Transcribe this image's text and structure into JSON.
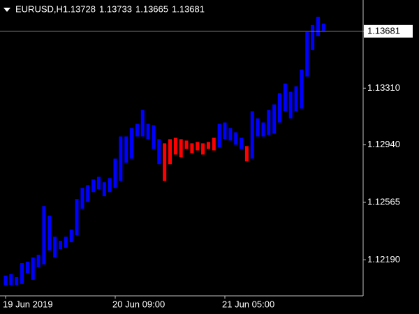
{
  "chart_data": {
    "type": "range-bar",
    "symbol": "EURUSD,H1",
    "ohlc": [
      1.13728,
      1.13733,
      1.13665,
      1.13681
    ],
    "last_price": 1.13681,
    "categories": [
      "19 Jun 2019",
      null,
      null,
      null,
      null,
      null,
      null,
      null,
      null,
      null,
      null,
      null,
      null,
      null,
      null,
      null,
      null,
      null,
      null,
      null,
      "20 Jun 09:00",
      null,
      null,
      null,
      null,
      null,
      null,
      null,
      null,
      null,
      null,
      null,
      null,
      null,
      null,
      null,
      null,
      null,
      null,
      null,
      "21 Jun 05:00",
      null,
      null,
      null,
      null,
      null,
      null,
      null,
      null,
      null,
      null,
      null,
      null,
      null,
      null,
      null,
      null,
      null,
      null
    ],
    "high": [
      1.12087,
      1.12096,
      1.12078,
      1.12169,
      1.12178,
      1.12205,
      1.12223,
      1.12541,
      1.12478,
      1.12341,
      1.12314,
      1.12341,
      1.12387,
      1.12587,
      1.12659,
      1.12677,
      1.12714,
      1.12732,
      1.12696,
      1.12723,
      1.1285,
      1.12995,
      1.12995,
      1.1305,
      1.13077,
      1.13168,
      1.13077,
      1.13068,
      1.12977,
      1.1295,
      1.12977,
      1.12986,
      1.12977,
      1.12968,
      1.1295,
      1.12959,
      1.1295,
      1.12959,
      1.12986,
      1.13077,
      1.13086,
      1.1305,
      1.13022,
      1.12986,
      1.12932,
      1.13159,
      1.13113,
      1.13086,
      1.13168,
      1.13204,
      1.13277,
      1.1334,
      1.13286,
      1.13322,
      1.13431,
      1.13676,
      1.13722,
      1.13776,
      1.13731
    ],
    "low": [
      1.12024,
      1.12024,
      1.12024,
      1.12033,
      1.12105,
      1.1206,
      1.12142,
      1.1216,
      1.12251,
      1.12205,
      1.1226,
      1.12269,
      1.12305,
      1.1235,
      1.12523,
      1.12568,
      1.12632,
      1.1265,
      1.12605,
      1.12632,
      1.12659,
      1.12705,
      1.12823,
      1.1285,
      1.12995,
      1.12995,
      1.12977,
      1.12913,
      1.12814,
      1.12705,
      1.12814,
      1.12877,
      1.12859,
      1.12913,
      1.12886,
      1.12904,
      1.12877,
      1.12913,
      1.12904,
      1.12923,
      1.12977,
      1.12968,
      1.12941,
      1.12913,
      1.12832,
      1.1285,
      1.12995,
      1.12995,
      1.13004,
      1.13013,
      1.13086,
      1.13159,
      1.13113,
      1.13159,
      1.13177,
      1.13386,
      1.13558,
      1.13649,
      1.13685
    ],
    "colors": [
      "#0000ff",
      "#0000ff",
      "#0000ff",
      "#0000ff",
      "#0000ff",
      "#0000ff",
      "#0000ff",
      "#0000ff",
      "#0000ff",
      "#0000ff",
      "#0000ff",
      "#0000ff",
      "#0000ff",
      "#0000ff",
      "#0000ff",
      "#0000ff",
      "#0000ff",
      "#0000ff",
      "#0000ff",
      "#0000ff",
      "#0000ff",
      "#0000ff",
      "#0000ff",
      "#0000ff",
      "#0000ff",
      "#0000ff",
      "#0000ff",
      "#0000ff",
      "#0000ff",
      "#ff0000",
      "#ff0000",
      "#ff0000",
      "#ff0000",
      "#ff0000",
      "#ff0000",
      "#ff0000",
      "#ff0000",
      "#ff0000",
      "#ff0000",
      "#0000ff",
      "#0000ff",
      "#0000ff",
      "#0000ff",
      "#0000ff",
      "#ff0000",
      "#0000ff",
      "#0000ff",
      "#0000ff",
      "#0000ff",
      "#0000ff",
      "#0000ff",
      "#0000ff",
      "#0000ff",
      "#0000ff",
      "#0000ff",
      "#0000ff",
      "#0000ff",
      "#0000ff",
      "#0000ff"
    ],
    "ylim": [
      1.11955,
      1.13885
    ],
    "yticks": [
      {
        "value": 1.1219,
        "label": "1.12190"
      },
      1.12565,
      {
        "value": 1.1294,
        "label": "1.12940"
      },
      {
        "value": 1.1331,
        "label": "1.13310"
      },
      1.13681
    ]
  }
}
